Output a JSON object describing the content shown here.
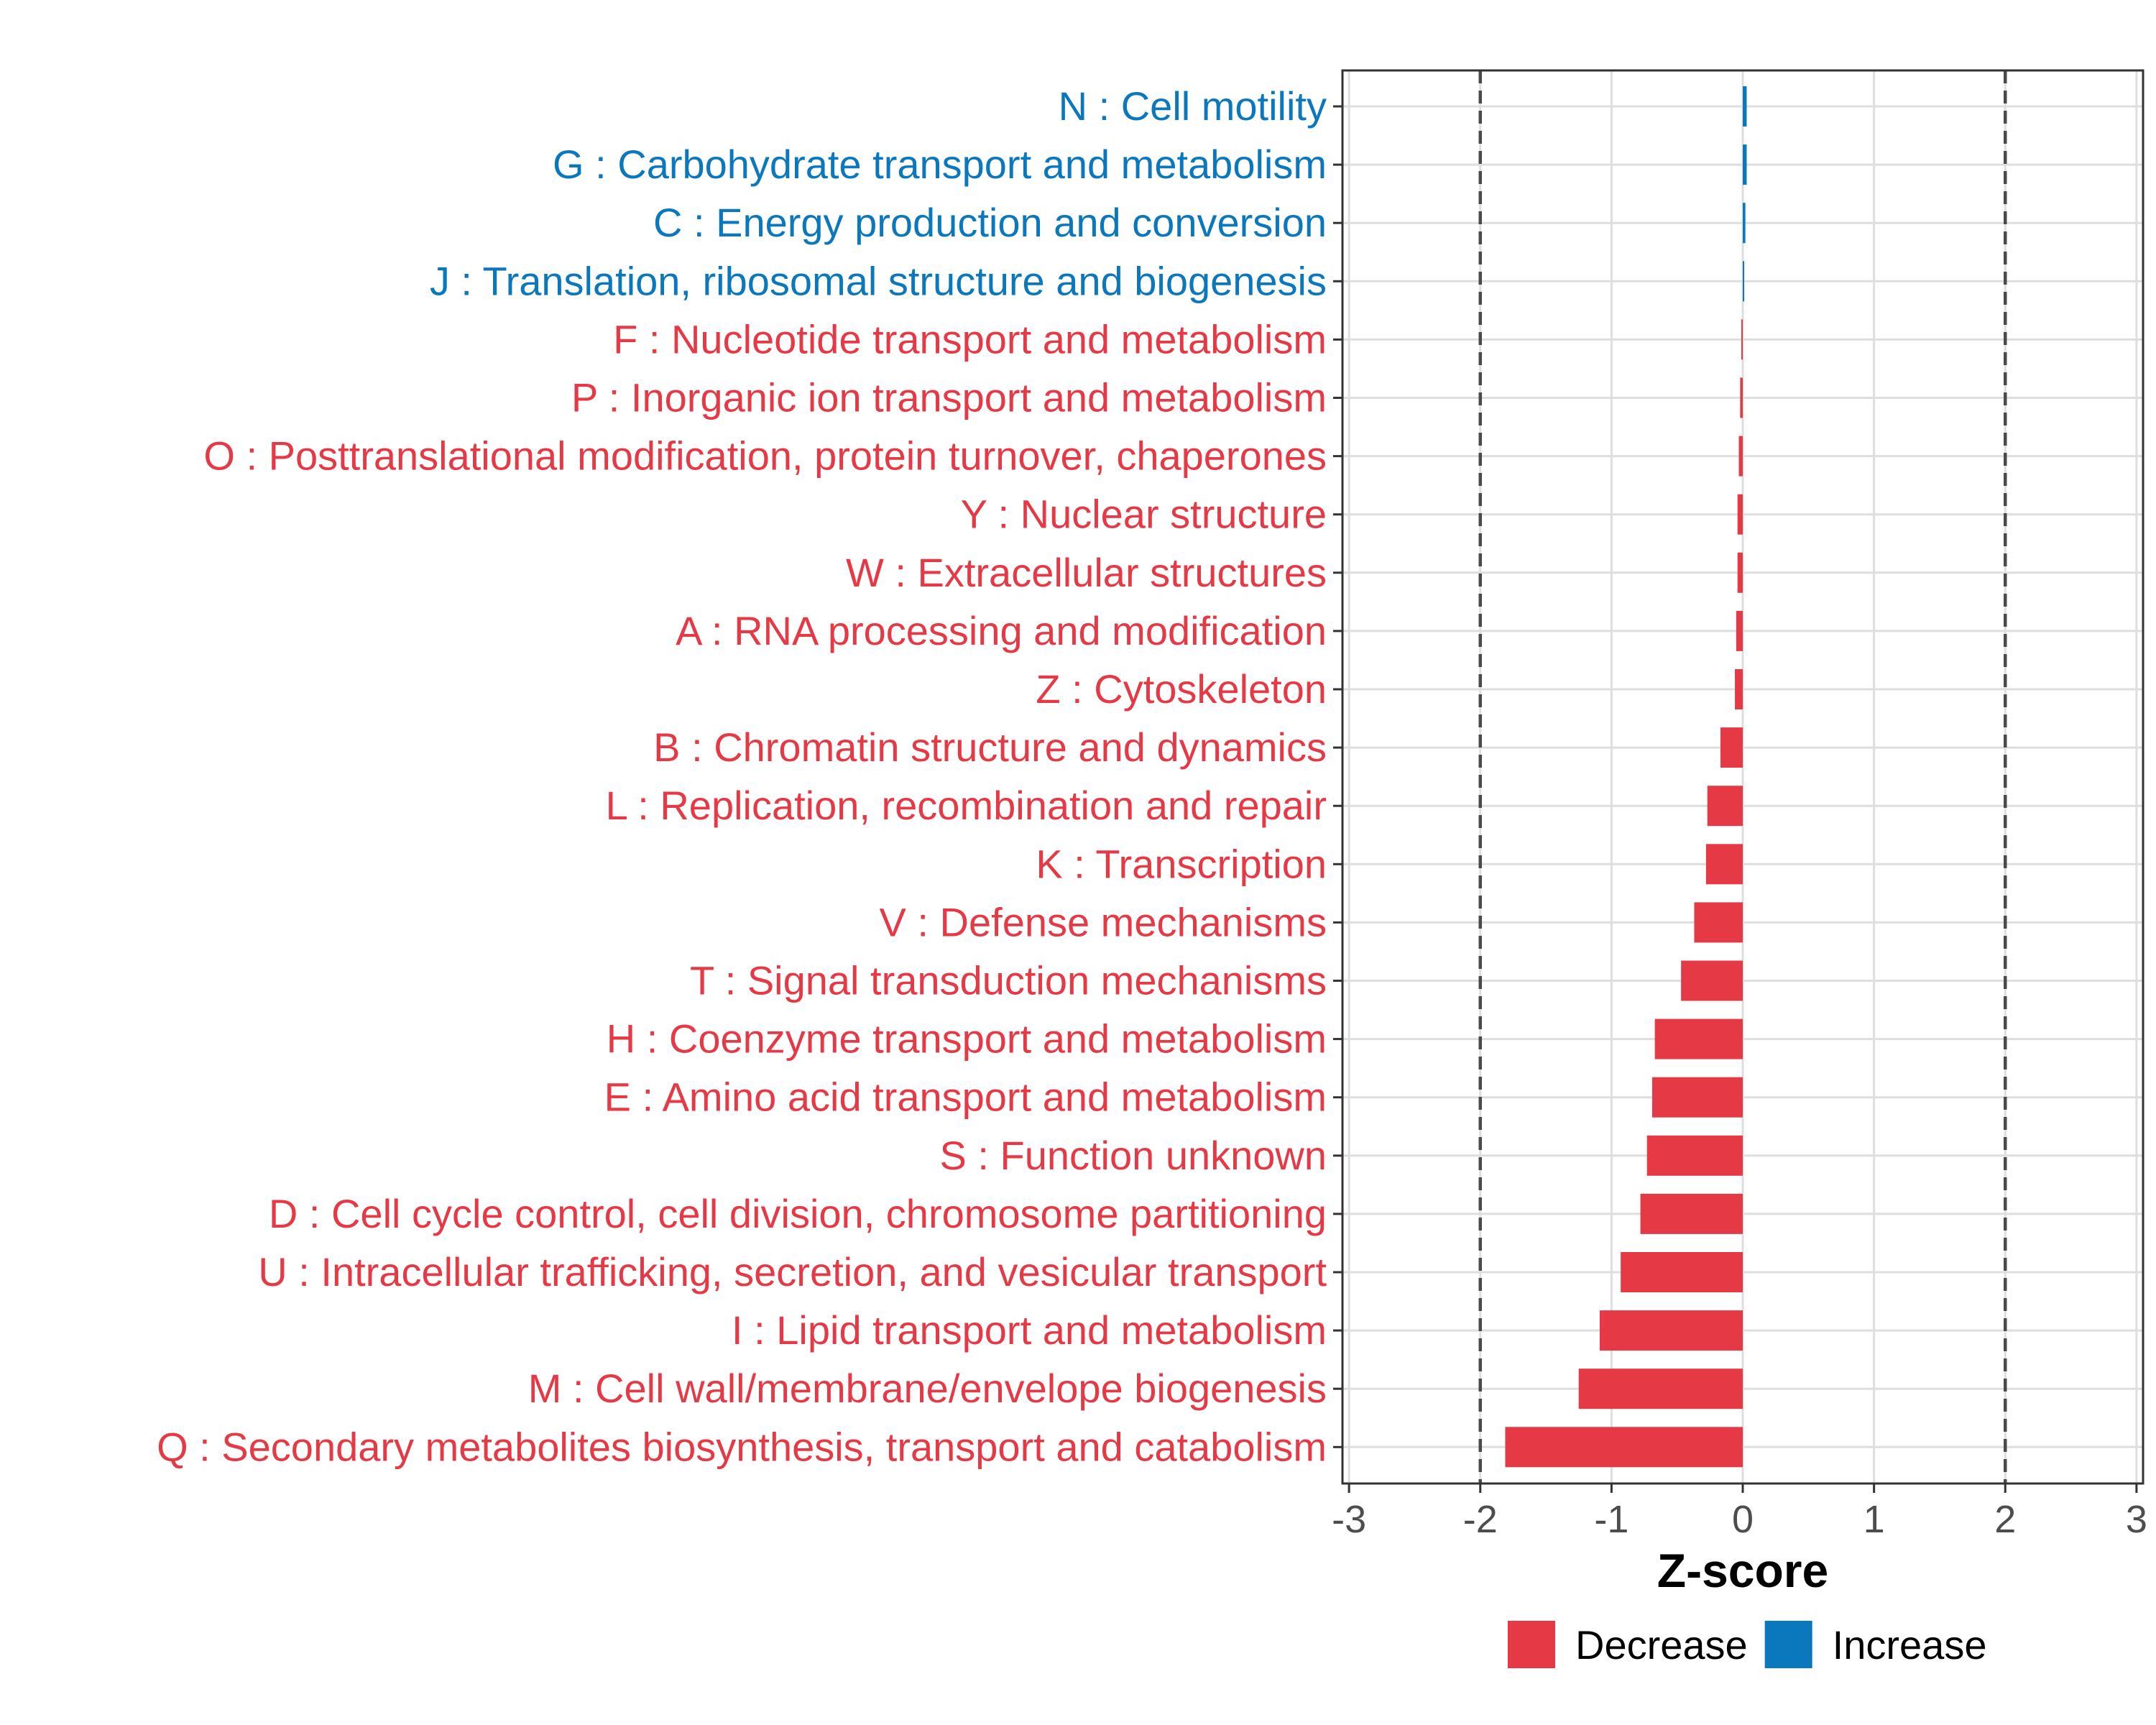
{
  "chart_data": {
    "type": "bar",
    "orientation": "horizontal",
    "xlabel": "Z-score",
    "xlim": [
      -3.05,
      3.05
    ],
    "xticks": [
      -3,
      -2,
      -1,
      0,
      1,
      2,
      3
    ],
    "reference_lines": [
      -2,
      2
    ],
    "grid": true,
    "legend_position": "bottom",
    "legend": [
      {
        "label": "Decrease",
        "color": "#E63946"
      },
      {
        "label": "Increase",
        "color": "#0B77BD"
      }
    ],
    "categories": [
      {
        "label": "N : Cell motility",
        "value": 0.03,
        "direction": "Increase"
      },
      {
        "label": "G : Carbohydrate transport and metabolism",
        "value": 0.03,
        "direction": "Increase"
      },
      {
        "label": "C : Energy production and conversion",
        "value": 0.02,
        "direction": "Increase"
      },
      {
        "label": "J : Translation, ribosomal structure and biogenesis",
        "value": 0.005,
        "direction": "Increase"
      },
      {
        "label": "F : Nucleotide transport and metabolism",
        "value": -0.005,
        "direction": "Decrease"
      },
      {
        "label": "P : Inorganic ion transport and metabolism",
        "value": -0.02,
        "direction": "Decrease"
      },
      {
        "label": "O : Posttranslational modification, protein turnover, chaperones",
        "value": -0.03,
        "direction": "Decrease"
      },
      {
        "label": "Y : Nuclear structure",
        "value": -0.04,
        "direction": "Decrease"
      },
      {
        "label": "W : Extracellular structures",
        "value": -0.04,
        "direction": "Decrease"
      },
      {
        "label": "A : RNA processing and modification",
        "value": -0.05,
        "direction": "Decrease"
      },
      {
        "label": "Z : Cytoskeleton",
        "value": -0.06,
        "direction": "Decrease"
      },
      {
        "label": "B : Chromatin structure and dynamics",
        "value": -0.17,
        "direction": "Decrease"
      },
      {
        "label": "L : Replication, recombination and repair",
        "value": -0.27,
        "direction": "Decrease"
      },
      {
        "label": "K : Transcription",
        "value": -0.28,
        "direction": "Decrease"
      },
      {
        "label": "V : Defense mechanisms",
        "value": -0.37,
        "direction": "Decrease"
      },
      {
        "label": "T : Signal transduction mechanisms",
        "value": -0.47,
        "direction": "Decrease"
      },
      {
        "label": "H : Coenzyme transport and metabolism",
        "value": -0.67,
        "direction": "Decrease"
      },
      {
        "label": "E : Amino acid transport and metabolism",
        "value": -0.69,
        "direction": "Decrease"
      },
      {
        "label": "S : Function unknown",
        "value": -0.73,
        "direction": "Decrease"
      },
      {
        "label": "D : Cell cycle control, cell division, chromosome partitioning",
        "value": -0.78,
        "direction": "Decrease"
      },
      {
        "label": "U : Intracellular trafficking, secretion, and vesicular transport",
        "value": -0.93,
        "direction": "Decrease"
      },
      {
        "label": "I : Lipid transport and metabolism",
        "value": -1.09,
        "direction": "Decrease"
      },
      {
        "label": "M : Cell wall/membrane/envelope biogenesis",
        "value": -1.25,
        "direction": "Decrease"
      },
      {
        "label": "Q : Secondary metabolites biosynthesis, transport and catabolism",
        "value": -1.81,
        "direction": "Decrease"
      }
    ]
  }
}
